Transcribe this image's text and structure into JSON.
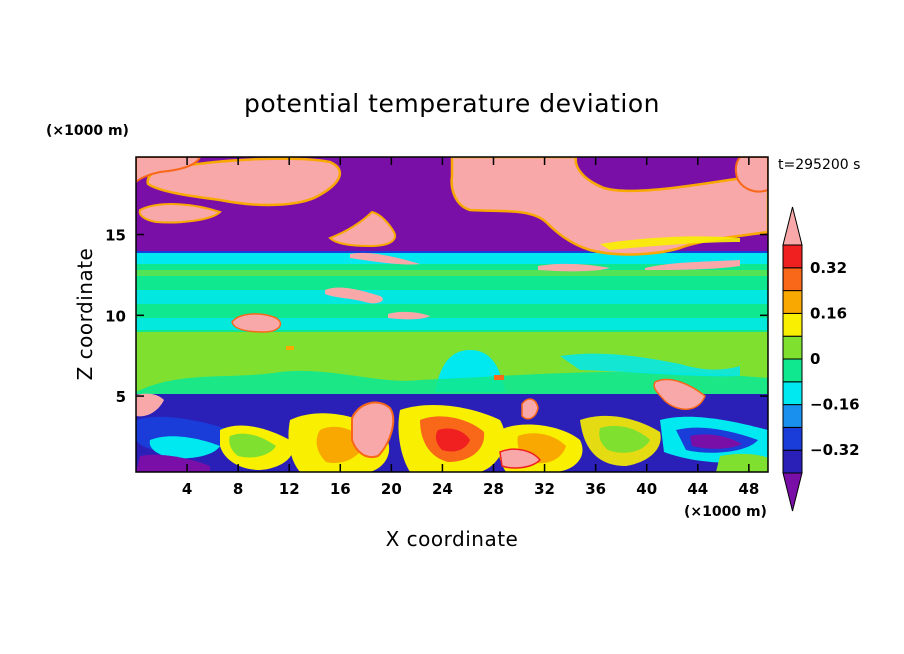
{
  "chart_data": {
    "type": "heatmap",
    "title": "potential temperature deviation",
    "xlabel": "X coordinate",
    "ylabel": "Z coordinate",
    "x_unit": "(×1000 m)",
    "y_unit": "(×1000 m)",
    "time_label": "t=295200 s",
    "xlim": [
      0,
      49.5
    ],
    "ylim": [
      0.3,
      19.8
    ],
    "x_ticks": [
      4,
      8,
      12,
      16,
      20,
      24,
      28,
      32,
      36,
      40,
      44,
      48
    ],
    "y_ticks": [
      5,
      10,
      15
    ],
    "colorbar": {
      "levels": [
        -0.4,
        -0.32,
        -0.24,
        -0.16,
        -0.08,
        0,
        0.08,
        0.16,
        0.24,
        0.32,
        0.4
      ],
      "tick_labels": [
        "0.32",
        "0.16",
        "0",
        "−0.16",
        "−0.32"
      ],
      "tick_values": [
        0.32,
        0.16,
        0,
        -0.16,
        -0.32
      ],
      "colors": [
        "#7a0fa8",
        "#2a20b8",
        "#1a3cd8",
        "#1a90ee",
        "#00e8f0",
        "#10e890",
        "#80e030",
        "#f8f000",
        "#f8a800",
        "#f86818",
        "#f02020",
        "#f8a8a8"
      ]
    },
    "bands": [
      {
        "z0": 0.3,
        "z1": 4.7,
        "description": "turbulent boundary layer: mixed deep-blue/purple and yellow/red/pink cells"
      },
      {
        "z0": 4.7,
        "z1": 13.4,
        "description": "mostly green with cyan bands, thin pink streaks near z=10–12"
      },
      {
        "z0": 13.4,
        "z1": 15.0,
        "description": "thin blue/cyan stripes"
      },
      {
        "z0": 15.0,
        "z1": 19.8,
        "description": "purple with large pink regions"
      }
    ]
  }
}
